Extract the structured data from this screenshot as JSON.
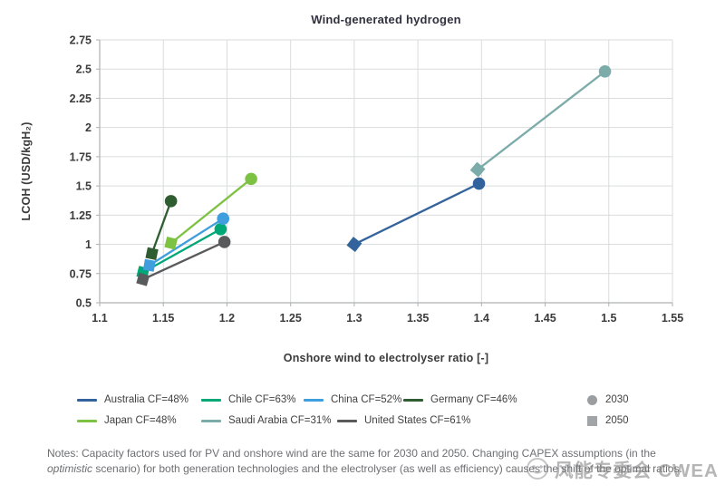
{
  "title": "Wind-generated hydrogen",
  "chart_data": {
    "type": "scatter",
    "title": "Wind-generated hydrogen",
    "xlabel": "Onshore wind to electrolyser ratio [-]",
    "ylabel": "LCOH (USD/kgH₂)",
    "xlim": [
      1.1,
      1.55
    ],
    "ylim": [
      0.5,
      2.75
    ],
    "x_ticks": [
      "1.1",
      "1.15",
      "1.2",
      "1.25",
      "1.3",
      "1.35",
      "1.4",
      "1.45",
      "1.5",
      "1.55"
    ],
    "y_ticks": [
      "0.5",
      "0.75",
      "1",
      "1.25",
      "1.5",
      "1.75",
      "2",
      "2.25",
      "2.5",
      "2.75"
    ],
    "grid": true,
    "legend_position": "bottom",
    "marker_legend": [
      {
        "year": "2030",
        "shape": "circle",
        "color": "#9b9ea0"
      },
      {
        "year": "2050",
        "shape": "square",
        "color": "#a2a5a7"
      }
    ],
    "series": [
      {
        "name": "Australia CF=48%",
        "color": "#33639C",
        "points": [
          {
            "year": "2050",
            "x": 1.3,
            "y": 1.0
          },
          {
            "year": "2030",
            "x": 1.398,
            "y": 1.52
          }
        ]
      },
      {
        "name": "Chile CF=63%",
        "color": "#00A878",
        "points": [
          {
            "year": "2050",
            "x": 1.134,
            "y": 0.76
          },
          {
            "year": "2030",
            "x": 1.195,
            "y": 1.13
          }
        ]
      },
      {
        "name": "China CF=52%",
        "color": "#3E9EDE",
        "points": [
          {
            "year": "2050",
            "x": 1.139,
            "y": 0.82
          },
          {
            "year": "2030",
            "x": 1.197,
            "y": 1.22
          }
        ]
      },
      {
        "name": "Germany CF=46%",
        "color": "#2F5D31",
        "points": [
          {
            "year": "2050",
            "x": 1.141,
            "y": 0.92
          },
          {
            "year": "2030",
            "x": 1.156,
            "y": 1.37
          }
        ]
      },
      {
        "name": "Japan CF=48%",
        "color": "#7DC242",
        "points": [
          {
            "year": "2050",
            "x": 1.156,
            "y": 1.01
          },
          {
            "year": "2030",
            "x": 1.219,
            "y": 1.56
          }
        ]
      },
      {
        "name": "Saudi Arabia CF=31%",
        "color": "#7CACA9",
        "points": [
          {
            "year": "2050",
            "x": 1.397,
            "y": 1.64
          },
          {
            "year": "2030",
            "x": 1.497,
            "y": 2.48
          }
        ]
      },
      {
        "name": "United States CF=61%",
        "color": "#595A5C",
        "points": [
          {
            "year": "2050",
            "x": 1.134,
            "y": 0.7
          },
          {
            "year": "2030",
            "x": 1.198,
            "y": 1.02
          }
        ]
      }
    ]
  },
  "notes": {
    "line1": "Notes: Capacity factors used for PV and onshore wind are the same for 2030 and 2050. Changing CAPEX assumptions",
    "line2_pre": "(in the ",
    "line2_italic": "optimistic",
    "line2_post": " scenario) for both generation technologies and the electrolyser (as well as efficiency) causes the shift",
    "line3": "of the optimal ratios."
  },
  "watermark": {
    "text": "风能专委会 CWEA"
  }
}
